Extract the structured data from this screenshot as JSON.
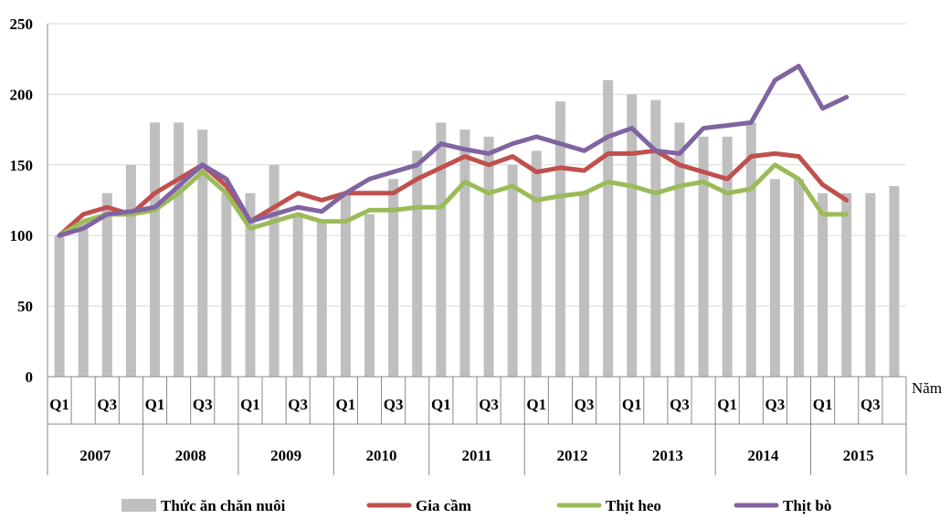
{
  "chart_data": {
    "type": "bar+line",
    "title": "",
    "xlabel": "Năm",
    "ylabel": "",
    "ylim": [
      0,
      250
    ],
    "yticks": [
      0,
      50,
      100,
      150,
      200,
      250
    ],
    "grid": true,
    "legend_position": "bottom",
    "years": [
      "2007",
      "2008",
      "2009",
      "2010",
      "2011",
      "2012",
      "2013",
      "2014",
      "2015"
    ],
    "quarter_labels": [
      "Q1",
      "",
      "Q3",
      ""
    ],
    "bar_series": {
      "name": "Thức ăn chăn nuôi",
      "color": "#bfbfbf",
      "values": [
        100,
        110,
        130,
        150,
        180,
        180,
        175,
        130,
        130,
        150,
        115,
        110,
        130,
        115,
        140,
        160,
        180,
        175,
        170,
        150,
        160,
        195,
        130,
        210,
        200,
        196,
        180,
        170,
        170,
        180,
        140,
        140,
        130,
        130,
        130,
        135
      ]
    },
    "line_series": [
      {
        "name": "Gia cầm",
        "color": "#c0504d",
        "values": [
          100,
          115,
          120,
          115,
          130,
          140,
          150,
          135,
          110,
          120,
          130,
          125,
          130,
          130,
          130,
          140,
          148,
          156,
          150,
          156,
          145,
          148,
          146,
          158,
          158,
          160,
          150,
          145,
          140,
          156,
          158,
          156,
          136,
          125
        ]
      },
      {
        "name": "Thịt heo",
        "color": "#9bbb59",
        "values": [
          100,
          110,
          115,
          115,
          118,
          130,
          145,
          130,
          105,
          110,
          115,
          110,
          110,
          118,
          118,
          120,
          120,
          138,
          130,
          135,
          125,
          128,
          130,
          138,
          135,
          130,
          135,
          138,
          130,
          133,
          150,
          140,
          115,
          115
        ]
      },
      {
        "name": "Thịt bò",
        "color": "#8064a2",
        "values": [
          100,
          105,
          115,
          117,
          120,
          135,
          150,
          140,
          110,
          115,
          120,
          117,
          130,
          140,
          145,
          150,
          165,
          161,
          158,
          165,
          170,
          165,
          160,
          170,
          176,
          160,
          158,
          176,
          178,
          180,
          210,
          220,
          190,
          198
        ]
      }
    ]
  }
}
